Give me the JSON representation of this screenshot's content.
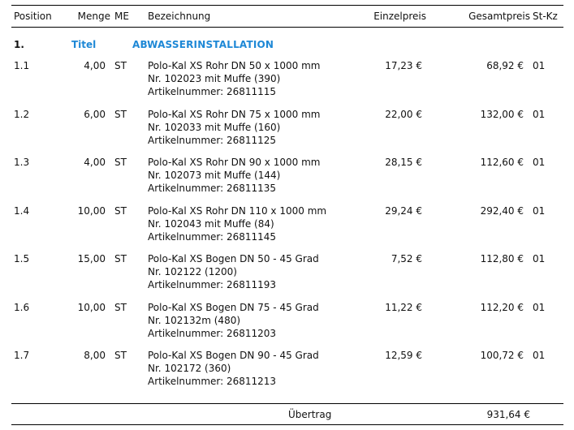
{
  "header": {
    "position": "Position",
    "menge": "Menge",
    "me": "ME",
    "bezeichnung": "Bezeichnung",
    "einzelpreis": "Einzelpreis",
    "gesamtpreis": "Gesamtpreis",
    "stkz": "St-Kz"
  },
  "section": {
    "number": "1.",
    "label": "Titel",
    "title": "ABWASSERINSTALLATION"
  },
  "rows": [
    {
      "pos": "1.1",
      "menge": "4,00",
      "me": "ST",
      "lines": [
        "Polo-Kal XS Rohr DN 50 x 1000 mm",
        "Nr. 102023 mit Muffe (390)",
        "Artikelnummer: 26811115"
      ],
      "einzel": "17,23 €",
      "gesamt": "68,92 €",
      "stkz": "01"
    },
    {
      "pos": "1.2",
      "menge": "6,00",
      "me": "ST",
      "lines": [
        "Polo-Kal XS Rohr DN 75 x 1000 mm",
        "Nr. 102033 mit Muffe (160)",
        "Artikelnummer: 26811125"
      ],
      "einzel": "22,00 €",
      "gesamt": "132,00 €",
      "stkz": "01"
    },
    {
      "pos": "1.3",
      "menge": "4,00",
      "me": "ST",
      "lines": [
        "Polo-Kal XS Rohr DN 90 x 1000 mm",
        "Nr. 102073 mit Muffe (144)",
        "Artikelnummer: 26811135"
      ],
      "einzel": "28,15 €",
      "gesamt": "112,60 €",
      "stkz": "01"
    },
    {
      "pos": "1.4",
      "menge": "10,00",
      "me": "ST",
      "lines": [
        "Polo-Kal XS Rohr DN 110 x 1000 mm",
        "Nr. 102043 mit Muffe (84)",
        "Artikelnummer: 26811145"
      ],
      "einzel": "29,24 €",
      "gesamt": "292,40 €",
      "stkz": "01"
    },
    {
      "pos": "1.5",
      "menge": "15,00",
      "me": "ST",
      "lines": [
        "Polo-Kal XS Bogen DN 50 - 45 Grad",
        "Nr. 102122 (1200)",
        "Artikelnummer: 26811193"
      ],
      "einzel": "7,52 €",
      "gesamt": "112,80 €",
      "stkz": "01"
    },
    {
      "pos": "1.6",
      "menge": "10,00",
      "me": "ST",
      "lines": [
        "Polo-Kal XS Bogen DN 75 - 45 Grad",
        "Nr. 102132m (480)",
        "Artikelnummer: 26811203"
      ],
      "einzel": "11,22 €",
      "gesamt": "112,20 €",
      "stkz": "01"
    },
    {
      "pos": "1.7",
      "menge": "8,00",
      "me": "ST",
      "lines": [
        "Polo-Kal XS Bogen DN 90 - 45 Grad",
        "Nr. 102172 (360)",
        "Artikelnummer: 26811213"
      ],
      "einzel": "12,59 €",
      "gesamt": "100,72 €",
      "stkz": "01"
    }
  ],
  "footer": {
    "label": "Übertrag",
    "total": "931,64 €"
  }
}
